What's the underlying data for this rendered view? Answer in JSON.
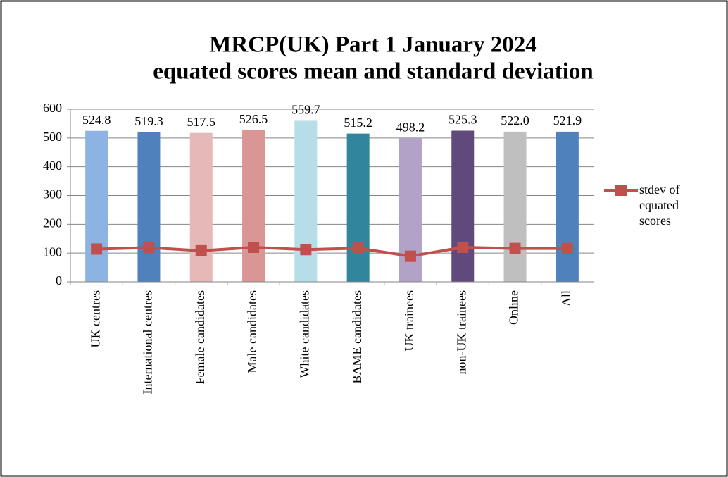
{
  "chart_data": {
    "type": "bar",
    "title": [
      "MRCP(UK) Part 1 January 2024",
      "equated scores mean and standard deviation"
    ],
    "categories": [
      "UK centres",
      "International centres",
      "Female candidates",
      "Male candidates",
      "White candidates",
      "BAME candidates",
      "UK trainees",
      "non-UK trainees",
      "Online",
      "All"
    ],
    "series": [
      {
        "type": "bar",
        "colors": [
          "#8db3e2",
          "#4f81bd",
          "#e6b9b8",
          "#d99694",
          "#b7dde8",
          "#31859c",
          "#b3a2c7",
          "#604a7b",
          "#bfbfbf",
          "#4f81bd"
        ],
        "values": [
          524.8,
          519.3,
          517.5,
          526.5,
          559.7,
          515.2,
          498.2,
          525.3,
          522.0,
          521.9
        ],
        "value_labels": [
          "524.8",
          "519.3",
          "517.5",
          "526.5",
          "559.7",
          "515.2",
          "498.2",
          "525.3",
          "522.0",
          "521.9"
        ]
      },
      {
        "type": "line",
        "name": "stdev of equated scores",
        "color": "#c0504d",
        "values": [
          114,
          119,
          108,
          120,
          112,
          117,
          89,
          120,
          116,
          116
        ]
      }
    ],
    "ylim": [
      0,
      600
    ],
    "yticks": [
      0,
      100,
      200,
      300,
      400,
      500,
      600
    ],
    "grid": true,
    "legend": "right"
  }
}
